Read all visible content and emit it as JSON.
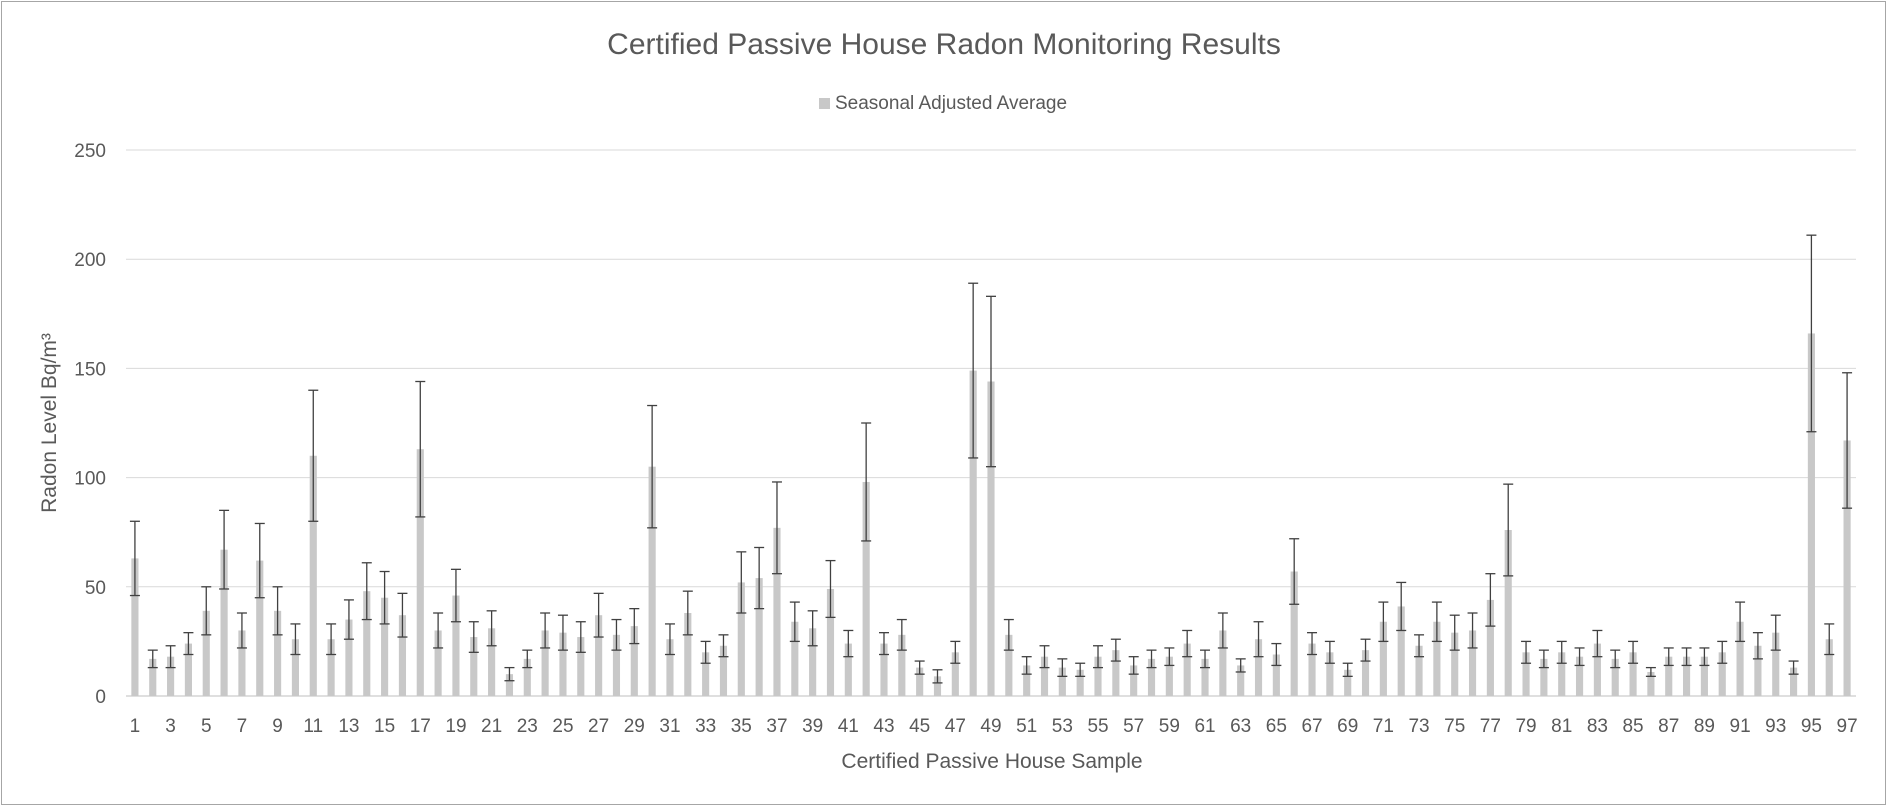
{
  "chart_data": {
    "type": "bar",
    "title": "Certified Passive House Radon Monitoring Results",
    "xlabel": "Certified Passive House Sample",
    "ylabel": "Radon Level Bq/m³",
    "ylim": [
      0,
      250
    ],
    "yticks": [
      0,
      50,
      100,
      150,
      200,
      250
    ],
    "grid": true,
    "legend_position": "top",
    "bar_color": "#c8c8c8",
    "error_bar_color": "#404040",
    "x": [
      1,
      2,
      3,
      4,
      5,
      6,
      7,
      8,
      9,
      10,
      11,
      12,
      13,
      14,
      15,
      16,
      17,
      18,
      19,
      20,
      21,
      22,
      23,
      24,
      25,
      26,
      27,
      28,
      29,
      30,
      31,
      32,
      33,
      34,
      35,
      36,
      37,
      38,
      39,
      40,
      41,
      42,
      43,
      44,
      45,
      46,
      47,
      48,
      49,
      50,
      51,
      52,
      53,
      54,
      55,
      56,
      57,
      58,
      59,
      60,
      61,
      62,
      63,
      64,
      65,
      66,
      67,
      68,
      69,
      70,
      71,
      72,
      73,
      74,
      75,
      76,
      77,
      78,
      79,
      80,
      81,
      82,
      83,
      84,
      85,
      86,
      87,
      88,
      89,
      90,
      91,
      92,
      93,
      94,
      95,
      96,
      97
    ],
    "x_tick_labels": [
      "1",
      "3",
      "5",
      "7",
      "9",
      "11",
      "13",
      "15",
      "17",
      "19",
      "21",
      "23",
      "25",
      "27",
      "29",
      "31",
      "33",
      "35",
      "37",
      "39",
      "41",
      "43",
      "45",
      "47",
      "49",
      "51",
      "53",
      "55",
      "57",
      "59",
      "61",
      "63",
      "65",
      "67",
      "69",
      "71",
      "73",
      "75",
      "77",
      "79",
      "81",
      "83",
      "85",
      "87",
      "89",
      "91",
      "93",
      "95",
      "97"
    ],
    "series": [
      {
        "name": "Seasonal Adjusted Average",
        "values": [
          63,
          17,
          18,
          24,
          39,
          67,
          30,
          62,
          39,
          26,
          110,
          26,
          35,
          48,
          45,
          37,
          113,
          30,
          46,
          27,
          31,
          10,
          17,
          30,
          29,
          27,
          37,
          28,
          32,
          105,
          26,
          38,
          20,
          23,
          52,
          54,
          77,
          34,
          31,
          49,
          24,
          98,
          24,
          28,
          13,
          9,
          20,
          149,
          144,
          28,
          14,
          18,
          13,
          12,
          18,
          21,
          14,
          17,
          18,
          24,
          17,
          30,
          14,
          26,
          19,
          57,
          24,
          20,
          12,
          21,
          34,
          41,
          23,
          34,
          29,
          30,
          44,
          76,
          20,
          17,
          20,
          18,
          24,
          17,
          20,
          11,
          18,
          18,
          18,
          20,
          34,
          23,
          29,
          13,
          166,
          26,
          117
        ],
        "error_upper": [
          80,
          21,
          23,
          29,
          50,
          85,
          38,
          79,
          50,
          33,
          140,
          33,
          44,
          61,
          57,
          47,
          144,
          38,
          58,
          34,
          39,
          13,
          21,
          38,
          37,
          34,
          47,
          35,
          40,
          133,
          33,
          48,
          25,
          28,
          66,
          68,
          98,
          43,
          39,
          62,
          30,
          125,
          29,
          35,
          16,
          12,
          25,
          189,
          183,
          35,
          18,
          23,
          17,
          15,
          23,
          26,
          18,
          21,
          22,
          30,
          21,
          38,
          17,
          34,
          24,
          72,
          29,
          25,
          15,
          26,
          43,
          52,
          28,
          43,
          37,
          38,
          56,
          97,
          25,
          21,
          25,
          22,
          30,
          21,
          25,
          13,
          22,
          22,
          22,
          25,
          43,
          29,
          37,
          16,
          211,
          33,
          148
        ],
        "error_lower": [
          46,
          13,
          13,
          19,
          28,
          49,
          22,
          45,
          28,
          19,
          80,
          19,
          26,
          35,
          33,
          27,
          82,
          22,
          34,
          20,
          23,
          7,
          13,
          22,
          21,
          20,
          27,
          21,
          24,
          77,
          19,
          28,
          15,
          18,
          38,
          40,
          56,
          25,
          23,
          36,
          18,
          71,
          19,
          21,
          10,
          6,
          15,
          109,
          105,
          21,
          10,
          13,
          9,
          9,
          13,
          16,
          10,
          13,
          14,
          18,
          13,
          22,
          11,
          18,
          14,
          42,
          19,
          15,
          9,
          16,
          25,
          30,
          18,
          25,
          21,
          22,
          32,
          55,
          15,
          13,
          15,
          14,
          18,
          13,
          15,
          9,
          14,
          14,
          14,
          15,
          25,
          17,
          21,
          10,
          121,
          19,
          86
        ]
      }
    ]
  }
}
